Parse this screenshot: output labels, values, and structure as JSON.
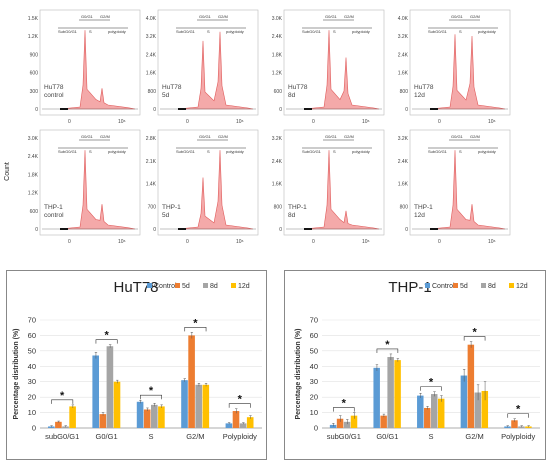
{
  "y_axis_count_label": "Count",
  "flow_panels": [
    {
      "label": [
        "HuT78",
        "control"
      ],
      "yticks": [
        "1.5K",
        "1.2K",
        "900",
        "600",
        "300",
        "0"
      ],
      "peaks": [
        0.95,
        0.25
      ],
      "gate": [
        "G0/G1",
        "G2/M",
        "SubG0/G1",
        "S",
        "polyploidy"
      ]
    },
    {
      "label": [
        "HuT78",
        "5d"
      ],
      "yticks": [
        "4.0K",
        "3.2K",
        "2.4K",
        "1.6K",
        "800",
        "0"
      ],
      "peaks": [
        0.82,
        0.93
      ],
      "gate": [
        "G0/G1",
        "G2/M",
        "SubG0/G1",
        "S",
        "polyploidy"
      ]
    },
    {
      "label": [
        "HuT78",
        "8d"
      ],
      "yticks": [
        "3.0K",
        "2.4K",
        "1.8K",
        "1.2K",
        "600",
        "0"
      ],
      "peaks": [
        0.95,
        0.62
      ],
      "gate": [
        "G0/G1",
        "G2/M",
        "SubG0/G1",
        "S",
        "polyploidy"
      ]
    },
    {
      "label": [
        "HuT78",
        "12d"
      ],
      "yticks": [
        "4.0K",
        "3.2K",
        "2.4K",
        "1.6K",
        "800",
        "0"
      ],
      "peaks": [
        0.9,
        0.88
      ],
      "gate": [
        "G0/G1",
        "G2/M",
        "SubG0/G1",
        "S",
        "polyploidy"
      ]
    },
    {
      "label": [
        "THP-1",
        "control"
      ],
      "yticks": [
        "3.0K",
        "2.4K",
        "1.8K",
        "1.2K",
        "600",
        "0"
      ],
      "peaks": [
        0.95,
        0.3
      ],
      "gate": [
        "G0/G1",
        "G2/M",
        "SubG0/G1",
        "S",
        "polyploidy"
      ]
    },
    {
      "label": [
        "THP-1",
        "5d"
      ],
      "yticks": [
        "2.8K",
        "2.1K",
        "1.4K",
        "700",
        "0"
      ],
      "peaks": [
        0.62,
        0.95
      ],
      "gate": [
        "G0/G1",
        "G2/M",
        "SubG0/G1",
        "S",
        "polyploidy"
      ]
    },
    {
      "label": [
        "THP-1",
        "8d"
      ],
      "yticks": [
        "3.2K",
        "2.4K",
        "1.6K",
        "800",
        "0"
      ],
      "peaks": [
        0.95,
        0.22
      ],
      "gate": [
        "G0/G1",
        "G2/M",
        "SubG0/G1",
        "S",
        "polyploidy"
      ]
    },
    {
      "label": [
        "THP-1",
        "12d"
      ],
      "yticks": [
        "3.2K",
        "2.4K",
        "1.6K",
        "800",
        "0"
      ],
      "peaks": [
        0.95,
        0.3
      ],
      "gate": [
        "G0/G1",
        "G2/M",
        "SubG0/G1",
        "S",
        "polyploidy"
      ]
    }
  ],
  "flow_xticks": [
    "0",
    "10⁶"
  ],
  "colors": {
    "control": "#5b9bd5",
    "d5": "#ed7d31",
    "d8": "#a5a5a5",
    "d12": "#ffc000",
    "histogram_fill": "#f4a9a9",
    "histogram_line": "#e05a5a"
  },
  "chart_data": [
    {
      "type": "bar",
      "title": "HuT78",
      "ylabel": "Percentage distribution (%)",
      "categories": [
        "subG0/G1",
        "G0/G1",
        "S",
        "G2/M",
        "Polyploidy"
      ],
      "ylim": [
        0,
        70
      ],
      "yticks": [
        "0",
        "10",
        "20",
        "30",
        "40",
        "50",
        "60",
        "70"
      ],
      "series": [
        {
          "name": "Control",
          "values": [
            1,
            47,
            17,
            31,
            3
          ],
          "errors": [
            0.5,
            2,
            1,
            1,
            0.5
          ]
        },
        {
          "name": "5d",
          "values": [
            4,
            9,
            12,
            60,
            11
          ],
          "errors": [
            0.5,
            1,
            1,
            2,
            1.5
          ]
        },
        {
          "name": "8d",
          "values": [
            1,
            53,
            15,
            28,
            3
          ],
          "errors": [
            0.5,
            1,
            1,
            1,
            0.5
          ]
        },
        {
          "name": "12d",
          "values": [
            14,
            30,
            14,
            28,
            7
          ],
          "errors": [
            1,
            1,
            1,
            1,
            1
          ]
        }
      ],
      "significance": [
        "*",
        "*",
        "*",
        "*",
        "*"
      ],
      "legend": "top-right"
    },
    {
      "type": "bar",
      "title": "THP-1",
      "ylabel": "Percentage distribution (%)",
      "categories": [
        "subG0/G1",
        "G0/G1",
        "S",
        "G2/M",
        "Polyploidy"
      ],
      "ylim": [
        0,
        70
      ],
      "yticks": [
        "0",
        "10",
        "20",
        "30",
        "40",
        "50",
        "60",
        "70"
      ],
      "series": [
        {
          "name": "Control",
          "values": [
            2,
            39,
            21,
            34,
            1
          ],
          "errors": [
            1,
            2,
            1.5,
            4,
            0.5
          ]
        },
        {
          "name": "5d",
          "values": [
            6,
            8,
            13,
            54,
            5
          ],
          "errors": [
            2,
            1,
            1,
            2,
            1
          ]
        },
        {
          "name": "8d",
          "values": [
            4,
            46,
            22,
            23,
            1
          ],
          "errors": [
            1.5,
            2,
            1.5,
            5,
            0.5
          ]
        },
        {
          "name": "12d",
          "values": [
            8,
            44,
            19,
            24,
            1
          ],
          "errors": [
            2,
            1,
            2,
            6,
            0.5
          ]
        }
      ],
      "significance": [
        "*",
        "*",
        "*",
        "*",
        "*"
      ],
      "legend": "top-right"
    }
  ]
}
